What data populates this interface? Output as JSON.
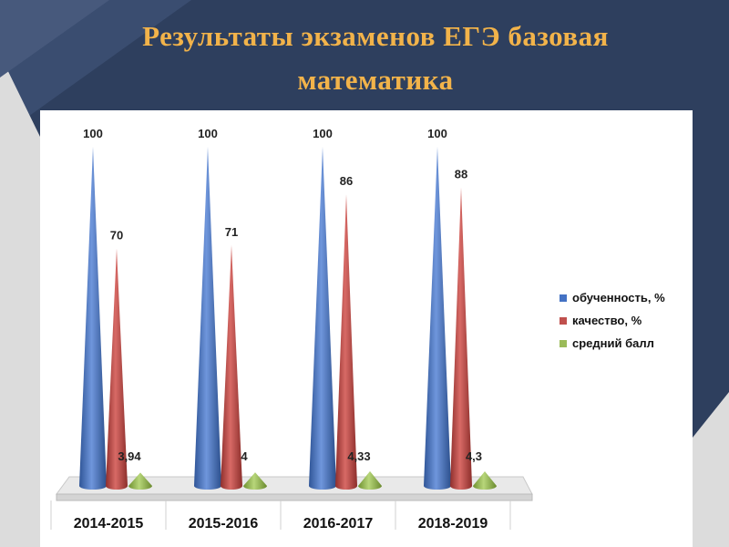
{
  "slide": {
    "title_line1": "Результаты экзаменов ЕГЭ базовая",
    "title_line2": "математика"
  },
  "colors": {
    "background": "#2e3f5e",
    "title": "#f2b34a",
    "series": [
      "#4472c4",
      "#c0504d",
      "#9bbb59"
    ]
  },
  "chart_data": {
    "type": "bar",
    "style": "3d-cone",
    "categories": [
      "2014-2015",
      "2015-2016",
      "2016-2017",
      "2018-2019"
    ],
    "series": [
      {
        "name": "обученность, %",
        "values": [
          100,
          100,
          100,
          100
        ],
        "labels": [
          "100",
          "100",
          "100",
          "100"
        ]
      },
      {
        "name": "качество, %",
        "values": [
          70,
          71,
          86,
          88
        ],
        "labels": [
          "70",
          "71",
          "86",
          "88"
        ]
      },
      {
        "name": "средний балл",
        "values": [
          3.94,
          4,
          4.33,
          4.3
        ],
        "labels": [
          "3,94",
          "4",
          "4,33",
          "4,3"
        ]
      }
    ],
    "ylim": [
      0,
      100
    ],
    "legend": "right",
    "grid": false
  }
}
